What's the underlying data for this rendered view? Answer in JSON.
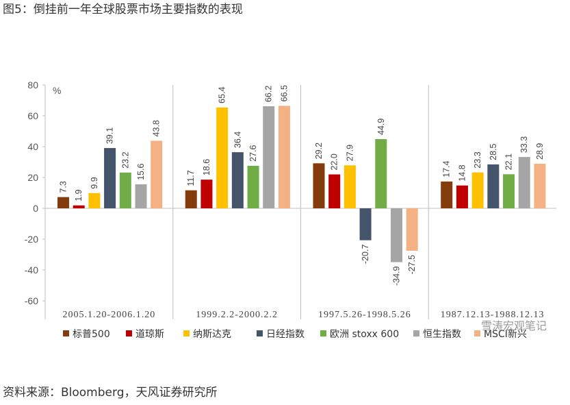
{
  "title": "图5：倒挂前一年全球股票市场主要指数的表现",
  "source": "资料来源：Bloomberg，天风证券研究所",
  "watermark": "雪涛宏观笔记",
  "chart_data": {
    "type": "bar",
    "ylabel": "%",
    "ylim": [
      -60,
      80
    ],
    "yticks": [
      80,
      60,
      40,
      20,
      0,
      -20,
      -40,
      -60
    ],
    "categories": [
      "2005.1.20-2006.1.20",
      "1999.2.2-2000.2.2",
      "1997.5.26-1998.5.26",
      "1987.12.13-1988.12.13"
    ],
    "series": [
      {
        "name": "标普500",
        "color": "#843C0C",
        "values": [
          7.3,
          11.7,
          29.2,
          17.4
        ]
      },
      {
        "name": "道琼斯",
        "color": "#C00000",
        "values": [
          1.9,
          18.6,
          22.0,
          14.8
        ]
      },
      {
        "name": "纳斯达克",
        "color": "#FFC000",
        "values": [
          9.9,
          65.4,
          27.9,
          23.3
        ]
      },
      {
        "name": "日经指数",
        "color": "#44546A",
        "values": [
          39.1,
          36.4,
          -20.7,
          28.5
        ]
      },
      {
        "name": "欧洲 stoxx 600",
        "color": "#70AD47",
        "values": [
          23.2,
          27.6,
          44.9,
          22.1
        ]
      },
      {
        "name": "恒生指数",
        "color": "#A5A5A5",
        "values": [
          15.6,
          66.2,
          -34.9,
          33.3
        ]
      },
      {
        "name": "MSCI新兴",
        "color": "#F4B183",
        "values": [
          43.8,
          66.5,
          -27.5,
          28.9
        ]
      }
    ],
    "legend_position": "bottom"
  }
}
